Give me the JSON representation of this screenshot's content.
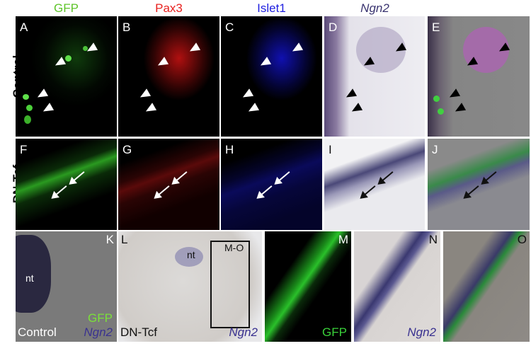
{
  "column_headers": [
    {
      "label": "GFP",
      "color": "#5ec42a"
    },
    {
      "label": "Pax3",
      "color": "#e8201e"
    },
    {
      "label": "Islet1",
      "color": "#2020e0"
    },
    {
      "label": "Ngn2",
      "color": "#3a3470"
    }
  ],
  "row_labels": {
    "control": "Control",
    "dn_tcf": "DN-Tcf"
  },
  "panels": {
    "A": "A",
    "B": "B",
    "C": "C",
    "D": "D",
    "E": "E",
    "F": "F",
    "G": "G",
    "H": "H",
    "I": "I",
    "J": "J",
    "K": "K",
    "L": "L",
    "M": "M",
    "N": "N",
    "O": "O"
  },
  "panel_K": {
    "nt": "nt",
    "gfp": "GFP",
    "ngn2": "Ngn2",
    "condition": "Control"
  },
  "panel_L": {
    "nt": "nt",
    "box_label": "M-O",
    "condition": "DN-Tcf",
    "ngn2": "Ngn2"
  },
  "panel_M": {
    "gfp": "GFP"
  },
  "panel_N": {
    "ngn2": "Ngn2"
  }
}
